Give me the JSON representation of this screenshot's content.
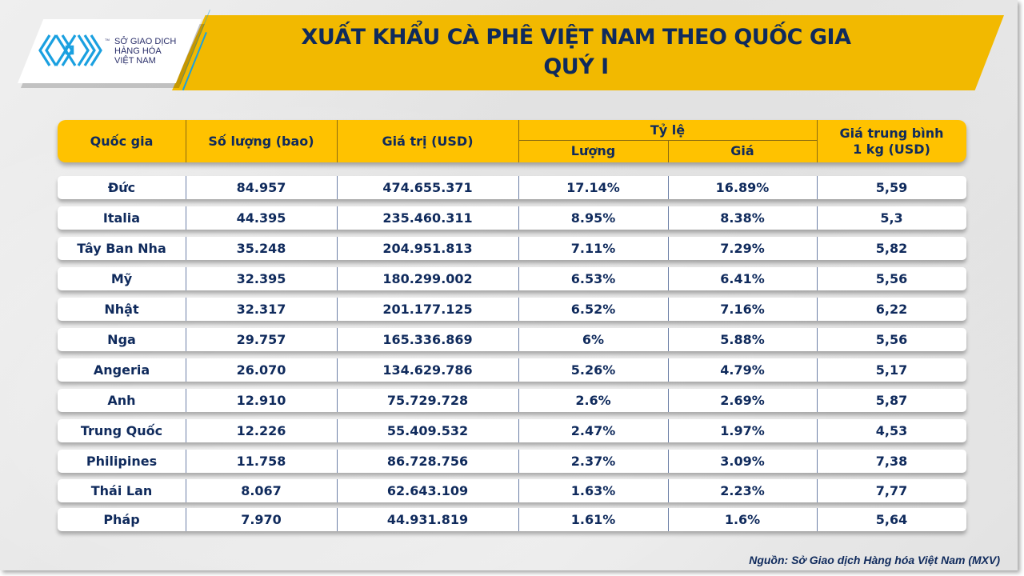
{
  "brand": {
    "logo_lines": [
      "SỞ GIAO DỊCH",
      "HÀNG HÓA",
      "VIỆT NAM"
    ],
    "trademark": "TM",
    "colors": {
      "band": "#f2b900",
      "header": "#ffc200",
      "text": "#0f2a5c",
      "logo_blue": "#1aa0e0"
    }
  },
  "title": {
    "line1": "XUẤT KHẨU CÀ PHÊ VIỆT NAM THEO QUỐC GIA",
    "line2": "QUÝ I"
  },
  "table": {
    "headers": {
      "country": "Quốc gia",
      "quantity": "Số lượng (bao)",
      "value": "Giá trị (USD)",
      "ratio": "Tỷ lệ",
      "ratio_quantity": "Lượng",
      "ratio_price": "Giá",
      "avg_price_line1": "Giá trung bình",
      "avg_price_line2": "1 kg (USD)"
    },
    "rows": [
      {
        "country": "Đức",
        "quantity": "84.957",
        "value": "474.655.371",
        "ratio_quantity": "17.14%",
        "ratio_price": "16.89%",
        "avg_price": "5,59"
      },
      {
        "country": "Italia",
        "quantity": "44.395",
        "value": "235.460.311",
        "ratio_quantity": "8.95%",
        "ratio_price": "8.38%",
        "avg_price": "5,3"
      },
      {
        "country": "Tây Ban Nha",
        "quantity": "35.248",
        "value": "204.951.813",
        "ratio_quantity": "7.11%",
        "ratio_price": "7.29%",
        "avg_price": "5,82"
      },
      {
        "country": "Mỹ",
        "quantity": "32.395",
        "value": "180.299.002",
        "ratio_quantity": "6.53%",
        "ratio_price": "6.41%",
        "avg_price": "5,56"
      },
      {
        "country": "Nhật",
        "quantity": "32.317",
        "value": "201.177.125",
        "ratio_quantity": "6.52%",
        "ratio_price": "7.16%",
        "avg_price": "6,22"
      },
      {
        "country": "Nga",
        "quantity": "29.757",
        "value": "165.336.869",
        "ratio_quantity": "6%",
        "ratio_price": "5.88%",
        "avg_price": "5,56"
      },
      {
        "country": "Angeria",
        "quantity": "26.070",
        "value": "134.629.786",
        "ratio_quantity": "5.26%",
        "ratio_price": "4.79%",
        "avg_price": "5,17"
      },
      {
        "country": "Anh",
        "quantity": "12.910",
        "value": "75.729.728",
        "ratio_quantity": "2.6%",
        "ratio_price": "2.69%",
        "avg_price": "5,87"
      },
      {
        "country": "Trung Quốc",
        "quantity": "12.226",
        "value": "55.409.532",
        "ratio_quantity": "2.47%",
        "ratio_price": "1.97%",
        "avg_price": "4,53"
      },
      {
        "country": "Philipines",
        "quantity": "11.758",
        "value": "86.728.756",
        "ratio_quantity": "2.37%",
        "ratio_price": "3.09%",
        "avg_price": "7,38"
      },
      {
        "country": "Thái Lan",
        "quantity": "8.067",
        "value": "62.643.109",
        "ratio_quantity": "1.63%",
        "ratio_price": "2.23%",
        "avg_price": "7,77"
      },
      {
        "country": "Pháp",
        "quantity": "7.970",
        "value": "44.931.819",
        "ratio_quantity": "1.61%",
        "ratio_price": "1.6%",
        "avg_price": "5,64"
      }
    ]
  },
  "source": "Nguồn: Sở Giao dịch Hàng hóa Việt Nam (MXV)"
}
